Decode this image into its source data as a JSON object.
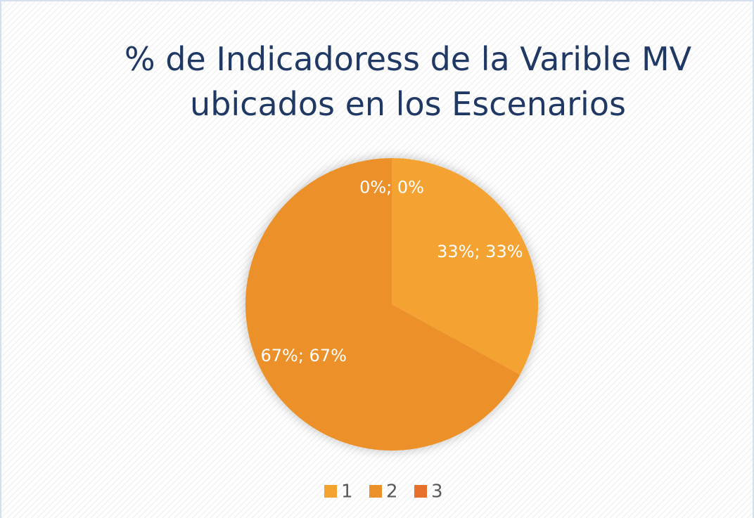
{
  "chart_data": {
    "type": "pie",
    "title": "% de Indicadoress de la Varible MV ubicados en los Escenarios",
    "categories": [
      "1",
      "2",
      "3"
    ],
    "values": [
      33,
      67,
      0
    ],
    "value_labels": [
      "33%; 33%",
      "67%; 67%",
      "0%; 0%"
    ],
    "colors": [
      "#f4a330",
      "#ec9029",
      "#e8702d"
    ],
    "legend": "bottom"
  }
}
